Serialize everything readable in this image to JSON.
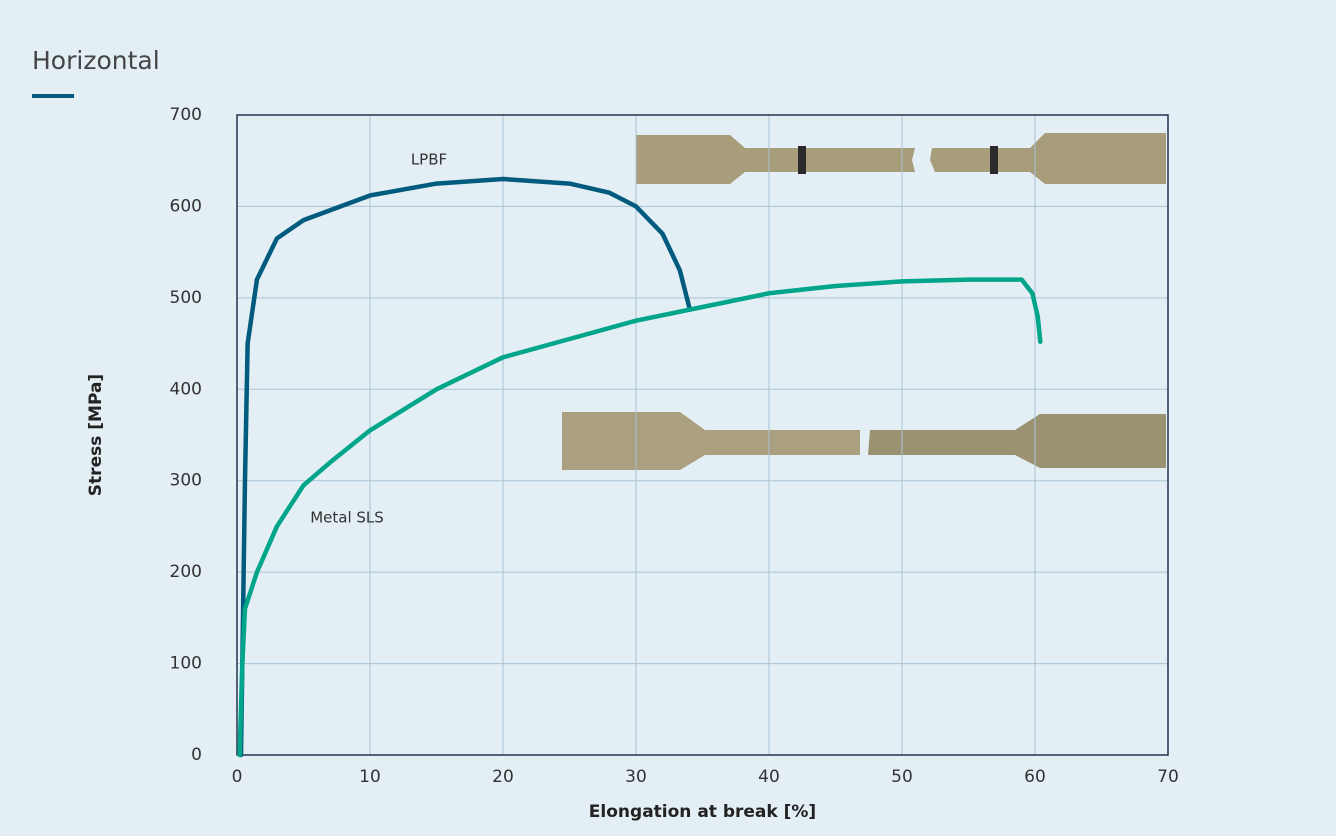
{
  "chart_data": {
    "type": "line",
    "title": "Horizontal",
    "xlabel": "Elongation at break [%]",
    "ylabel": "Stress [MPa]",
    "xlim": [
      0,
      70
    ],
    "ylim": [
      0,
      700
    ],
    "xticks": [
      0,
      10,
      20,
      30,
      40,
      50,
      60,
      70
    ],
    "yticks": [
      0,
      100,
      200,
      300,
      400,
      500,
      600,
      700
    ],
    "grid": true,
    "annotations": [
      "LPBF",
      "Metal SLS"
    ],
    "series": [
      {
        "name": "LPBF",
        "color": "#005b7f",
        "x": [
          0.3,
          0.6,
          0.8,
          1.5,
          3,
          5,
          10,
          15,
          20,
          25,
          28,
          30,
          32,
          33.3,
          34
        ],
        "values": [
          0,
          300,
          450,
          520,
          565,
          585,
          612,
          625,
          630,
          625,
          615,
          600,
          570,
          530,
          490
        ]
      },
      {
        "name": "Metal SLS",
        "color": "#00a58a",
        "x": [
          0.2,
          0.4,
          0.6,
          1.5,
          3,
          5,
          7,
          10,
          15,
          20,
          25,
          30,
          35,
          40,
          45,
          50,
          55,
          59,
          59.8,
          60.2,
          60.4
        ],
        "values": [
          0,
          100,
          160,
          200,
          250,
          295,
          320,
          355,
          400,
          435,
          455,
          475,
          490,
          505,
          513,
          518,
          520,
          520,
          505,
          480,
          452
        ]
      }
    ]
  }
}
